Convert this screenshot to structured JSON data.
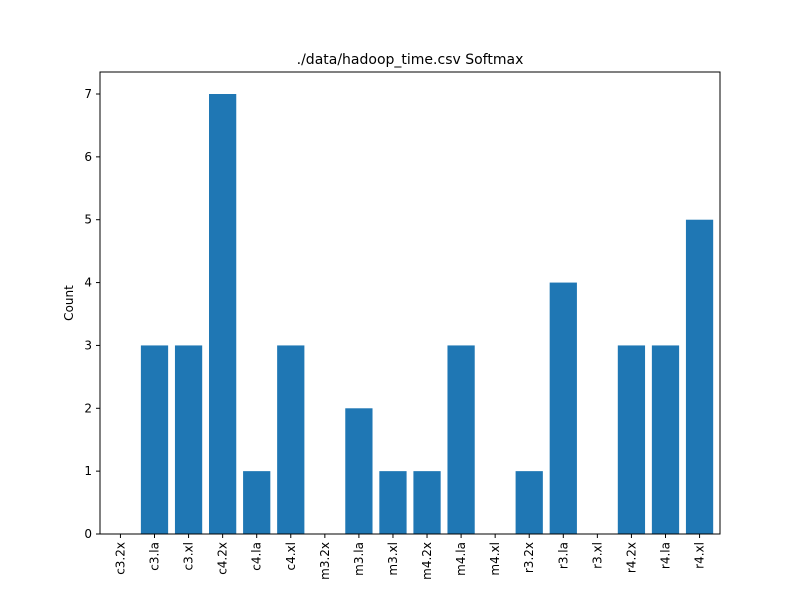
{
  "chart_data": {
    "type": "bar",
    "title": "./data/hadoop_time.csv Softmax",
    "xlabel": "",
    "ylabel": "Count",
    "categories": [
      "c3.2x",
      "c3.la",
      "c3.xl",
      "c4.2x",
      "c4.la",
      "c4.xl",
      "m3.2x",
      "m3.la",
      "m3.xl",
      "m4.2x",
      "m4.la",
      "m4.xl",
      "r3.2x",
      "r3.la",
      "r3.xl",
      "r4.2x",
      "r4.la",
      "r4.xl"
    ],
    "values": [
      0,
      3,
      3,
      7,
      1,
      3,
      0,
      2,
      1,
      1,
      3,
      0,
      1,
      4,
      0,
      3,
      3,
      5
    ],
    "ylim": [
      0,
      7.35
    ],
    "yticks": [
      0,
      1,
      2,
      3,
      4,
      5,
      6,
      7
    ],
    "grid": false,
    "bar_color": "#1f77b4"
  }
}
